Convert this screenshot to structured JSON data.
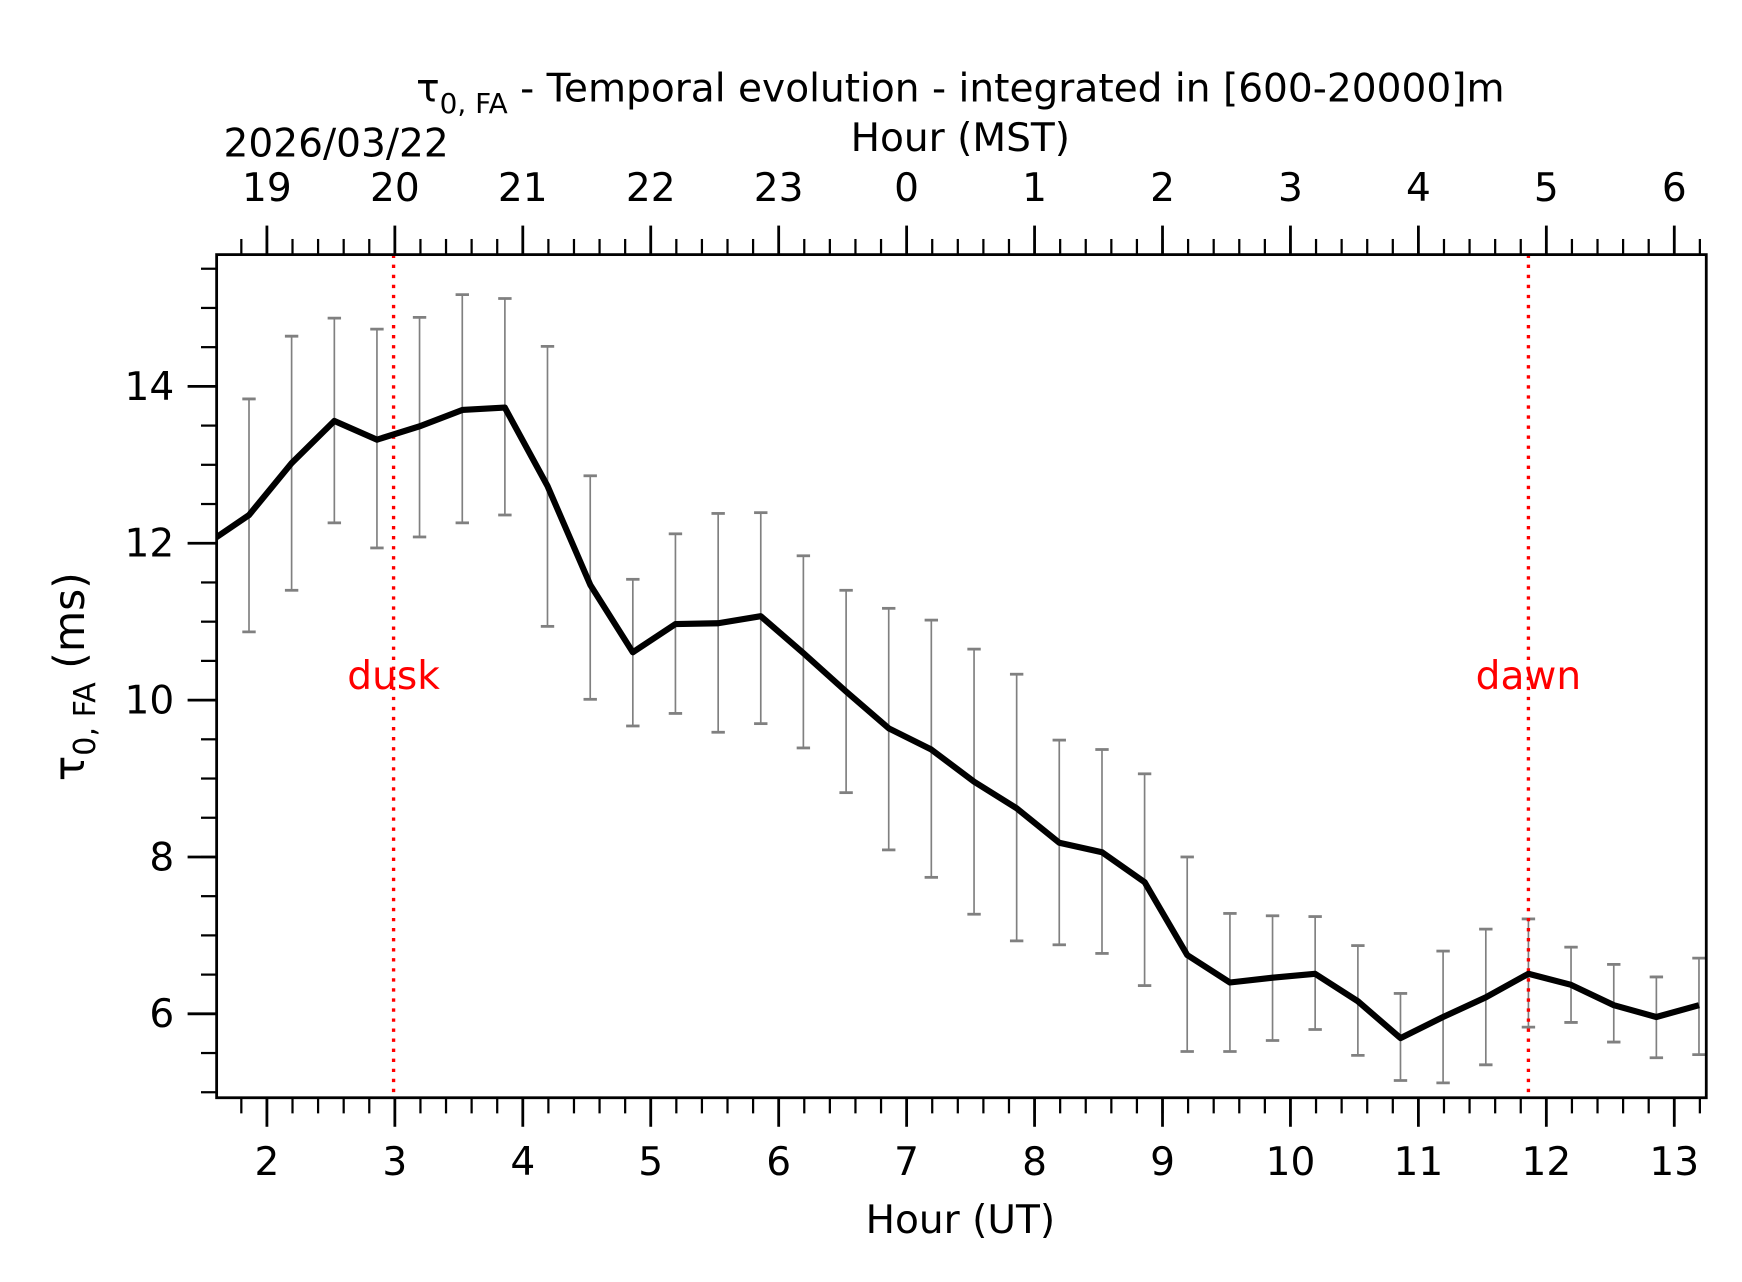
{
  "chart_data": {
    "type": "line",
    "title": "τ0,FA - Temporal evolution - integrated in [600-20000]m",
    "title_symbol": "τ",
    "title_subscript": "0, FA",
    "title_rest": " - Temporal evolution - integrated in [600-20000]m",
    "date_label": "2026/03/22",
    "xlabel": "Hour (UT)",
    "x2label": "Hour (MST)",
    "ylabel_symbol": "τ",
    "ylabel_subscript": "0, FA",
    "ylabel_rest": " (ms)",
    "xlim": [
      1.607,
      13.25
    ],
    "ylim": [
      4.93,
      15.68
    ],
    "x_ticks": [
      2,
      3,
      4,
      5,
      6,
      7,
      8,
      9,
      10,
      11,
      12,
      13
    ],
    "x2_tick_labels": [
      "19",
      "20",
      "21",
      "22",
      "23",
      "0",
      "1",
      "2",
      "3",
      "4",
      "5",
      "6"
    ],
    "y_ticks": [
      6,
      8,
      10,
      12,
      14
    ],
    "line_color": "#000000",
    "errorbar_color": "#808080",
    "marker_color": "#ff0000",
    "grid": false,
    "x": [
      1.527,
      1.86,
      2.193,
      2.527,
      2.86,
      3.193,
      3.527,
      3.86,
      4.193,
      4.527,
      4.86,
      5.193,
      5.527,
      5.86,
      6.193,
      6.527,
      6.86,
      7.193,
      7.527,
      7.86,
      8.193,
      8.527,
      8.86,
      9.193,
      9.527,
      9.86,
      10.193,
      10.527,
      10.86,
      11.193,
      11.527,
      11.86,
      12.193,
      12.527,
      12.86,
      13.193
    ],
    "values": [
      11.99,
      12.36,
      13.02,
      13.56,
      13.32,
      13.49,
      13.7,
      13.73,
      12.73,
      11.47,
      10.61,
      10.97,
      10.98,
      11.07,
      10.6,
      10.11,
      9.64,
      9.37,
      8.96,
      8.62,
      8.18,
      8.06,
      7.68,
      6.75,
      6.4,
      6.46,
      6.51,
      6.16,
      5.69,
      5.96,
      6.21,
      6.51,
      6.37,
      6.11,
      5.96,
      6.11
    ],
    "err_upper": [
      null,
      13.84,
      14.64,
      14.87,
      14.73,
      14.88,
      15.17,
      15.12,
      14.51,
      12.86,
      11.54,
      12.12,
      12.38,
      12.39,
      11.84,
      11.4,
      11.17,
      11.02,
      10.65,
      10.33,
      9.49,
      9.37,
      9.06,
      8.0,
      7.28,
      7.25,
      7.24,
      6.87,
      6.26,
      6.8,
      7.08,
      7.21,
      6.85,
      6.63,
      6.47,
      6.71
    ],
    "err_lower": [
      null,
      10.87,
      11.4,
      12.26,
      11.94,
      12.08,
      12.26,
      12.36,
      10.94,
      10.01,
      9.67,
      9.83,
      9.59,
      9.7,
      9.39,
      8.82,
      8.09,
      7.74,
      7.27,
      6.93,
      6.88,
      6.77,
      6.36,
      5.52,
      5.52,
      5.66,
      5.8,
      5.47,
      5.15,
      5.12,
      5.35,
      5.83,
      5.89,
      5.64,
      5.44,
      5.48
    ],
    "markers": [
      {
        "label": "dusk",
        "x": 2.99
      },
      {
        "label": "dawn",
        "x": 11.86
      }
    ]
  }
}
